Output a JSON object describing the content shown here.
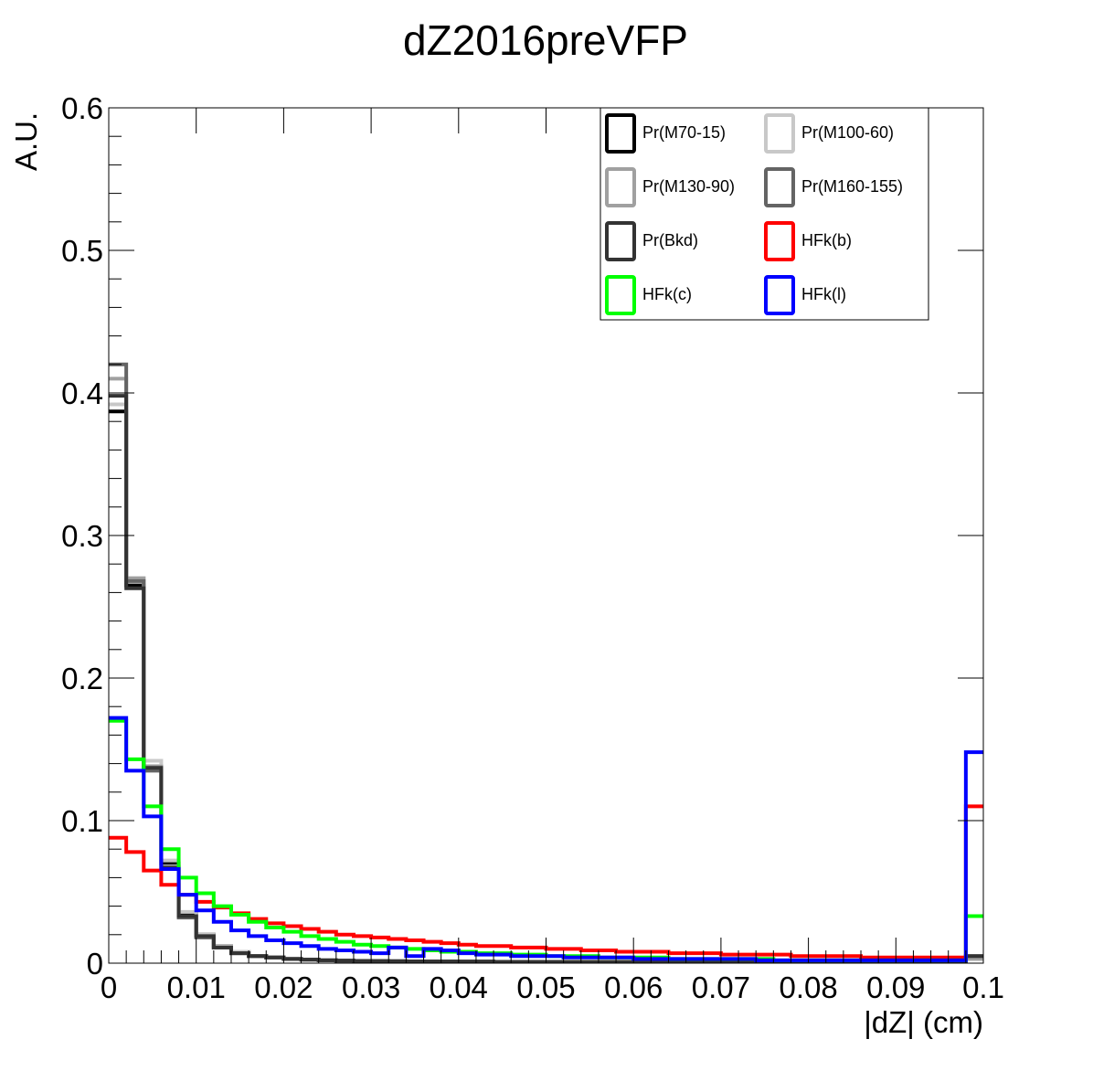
{
  "chart_data": {
    "type": "line",
    "style": "step-histogram",
    "title": "dZ2016preVFP",
    "xlabel": "|dZ| (cm)",
    "ylabel": "A.U.",
    "xlim": [
      0,
      0.1
    ],
    "ylim": [
      0,
      0.6
    ],
    "bin_width": 0.002,
    "x_ticks": [
      0,
      0.01,
      0.02,
      0.03,
      0.04,
      0.05,
      0.06,
      0.07,
      0.08,
      0.09,
      0.1
    ],
    "x_tick_labels": [
      "0",
      "0.01",
      "0.02",
      "0.03",
      "0.04",
      "0.05",
      "0.06",
      "0.07",
      "0.08",
      "0.09",
      "0.1"
    ],
    "y_ticks": [
      0,
      0.1,
      0.2,
      0.3,
      0.4,
      0.5,
      0.6
    ],
    "y_tick_labels": [
      "0",
      "0.1",
      "0.2",
      "0.3",
      "0.4",
      "0.5",
      "0.6"
    ],
    "grid": false,
    "legend_position": "top-right",
    "series": [
      {
        "name": "Pr(M70-15)",
        "color": "#000000",
        "values": [
          0.387,
          0.265,
          0.138,
          0.07,
          0.035,
          0.02,
          0.012,
          0.008,
          0.005,
          0.004,
          0.003,
          0.0025,
          0.002,
          0.0018,
          0.0016,
          0.0015,
          0.0014,
          0.0013,
          0.0012,
          0.0012,
          0.0011,
          0.0011,
          0.001,
          0.001,
          0.001,
          0.001,
          0.001,
          0.001,
          0.001,
          0.001,
          0.001,
          0.001,
          0.001,
          0.001,
          0.001,
          0.001,
          0.001,
          0.001,
          0.001,
          0.001,
          0.001,
          0.001,
          0.001,
          0.001,
          0.001,
          0.001,
          0.001,
          0.001,
          0.001,
          0.004
        ]
      },
      {
        "name": "Pr(M100-60)",
        "color": "#c8c8c8",
        "values": [
          0.392,
          0.27,
          0.142,
          0.072,
          0.036,
          0.02,
          0.012,
          0.008,
          0.005,
          0.004,
          0.003,
          0.0025,
          0.002,
          0.0018,
          0.0016,
          0.0015,
          0.0014,
          0.0013,
          0.0012,
          0.0012,
          0.0011,
          0.0011,
          0.001,
          0.001,
          0.001,
          0.001,
          0.001,
          0.001,
          0.001,
          0.001,
          0.001,
          0.001,
          0.001,
          0.001,
          0.001,
          0.001,
          0.001,
          0.001,
          0.001,
          0.001,
          0.001,
          0.001,
          0.001,
          0.001,
          0.001,
          0.001,
          0.001,
          0.001,
          0.001,
          0.003
        ]
      },
      {
        "name": "Pr(M130-90)",
        "color": "#a0a0a0",
        "values": [
          0.41,
          0.27,
          0.138,
          0.068,
          0.033,
          0.018,
          0.011,
          0.007,
          0.005,
          0.004,
          0.003,
          0.0025,
          0.002,
          0.0018,
          0.0016,
          0.0015,
          0.0014,
          0.0013,
          0.0012,
          0.0012,
          0.0011,
          0.0011,
          0.001,
          0.001,
          0.001,
          0.001,
          0.001,
          0.001,
          0.001,
          0.001,
          0.001,
          0.001,
          0.001,
          0.001,
          0.001,
          0.001,
          0.001,
          0.001,
          0.001,
          0.001,
          0.001,
          0.001,
          0.001,
          0.001,
          0.001,
          0.001,
          0.001,
          0.001,
          0.001,
          0.003
        ]
      },
      {
        "name": "Pr(M160-155)",
        "color": "#646464",
        "values": [
          0.42,
          0.268,
          0.135,
          0.067,
          0.032,
          0.018,
          0.011,
          0.007,
          0.005,
          0.004,
          0.003,
          0.0025,
          0.002,
          0.0018,
          0.0016,
          0.0015,
          0.0014,
          0.0013,
          0.0012,
          0.0012,
          0.0011,
          0.0011,
          0.001,
          0.001,
          0.001,
          0.001,
          0.001,
          0.001,
          0.001,
          0.001,
          0.001,
          0.001,
          0.001,
          0.001,
          0.001,
          0.001,
          0.001,
          0.001,
          0.001,
          0.001,
          0.001,
          0.001,
          0.001,
          0.001,
          0.001,
          0.001,
          0.001,
          0.001,
          0.001,
          0.005
        ]
      },
      {
        "name": "Pr(Bkd)",
        "color": "#333333",
        "values": [
          0.398,
          0.263,
          0.137,
          0.067,
          0.033,
          0.019,
          0.011,
          0.007,
          0.005,
          0.004,
          0.003,
          0.0025,
          0.002,
          0.0018,
          0.0016,
          0.0015,
          0.0014,
          0.0013,
          0.0012,
          0.0012,
          0.0011,
          0.0011,
          0.001,
          0.001,
          0.001,
          0.001,
          0.001,
          0.001,
          0.001,
          0.001,
          0.001,
          0.001,
          0.001,
          0.001,
          0.001,
          0.001,
          0.001,
          0.001,
          0.001,
          0.001,
          0.001,
          0.001,
          0.001,
          0.001,
          0.001,
          0.001,
          0.001,
          0.001,
          0.001,
          0.005
        ]
      },
      {
        "name": "HFk(b)",
        "color": "#ff0000",
        "values": [
          0.088,
          0.078,
          0.065,
          0.055,
          0.048,
          0.043,
          0.039,
          0.035,
          0.031,
          0.028,
          0.026,
          0.024,
          0.022,
          0.02,
          0.019,
          0.018,
          0.017,
          0.016,
          0.015,
          0.014,
          0.013,
          0.012,
          0.012,
          0.011,
          0.011,
          0.01,
          0.01,
          0.009,
          0.009,
          0.008,
          0.008,
          0.008,
          0.007,
          0.007,
          0.007,
          0.006,
          0.006,
          0.006,
          0.006,
          0.005,
          0.005,
          0.005,
          0.005,
          0.004,
          0.004,
          0.004,
          0.004,
          0.004,
          0.004,
          0.11
        ]
      },
      {
        "name": "HFk(c)",
        "color": "#00ff00",
        "values": [
          0.17,
          0.143,
          0.11,
          0.08,
          0.06,
          0.049,
          0.04,
          0.034,
          0.029,
          0.025,
          0.022,
          0.019,
          0.017,
          0.015,
          0.013,
          0.012,
          0.011,
          0.01,
          0.009,
          0.008,
          0.008,
          0.007,
          0.007,
          0.006,
          0.006,
          0.005,
          0.005,
          0.005,
          0.004,
          0.004,
          0.004,
          0.004,
          0.003,
          0.003,
          0.003,
          0.003,
          0.003,
          0.003,
          0.002,
          0.002,
          0.002,
          0.002,
          0.002,
          0.002,
          0.002,
          0.002,
          0.002,
          0.002,
          0.002,
          0.033
        ]
      },
      {
        "name": "HFk(l)",
        "color": "#0000ff",
        "values": [
          0.172,
          0.135,
          0.103,
          0.066,
          0.048,
          0.037,
          0.029,
          0.023,
          0.019,
          0.016,
          0.014,
          0.012,
          0.01,
          0.009,
          0.008,
          0.007,
          0.011,
          0.005,
          0.01,
          0.009,
          0.007,
          0.006,
          0.006,
          0.005,
          0.005,
          0.005,
          0.004,
          0.004,
          0.004,
          0.004,
          0.003,
          0.003,
          0.003,
          0.003,
          0.003,
          0.003,
          0.003,
          0.002,
          0.002,
          0.002,
          0.002,
          0.002,
          0.002,
          0.002,
          0.002,
          0.002,
          0.002,
          0.002,
          0.002,
          0.148
        ]
      }
    ]
  }
}
